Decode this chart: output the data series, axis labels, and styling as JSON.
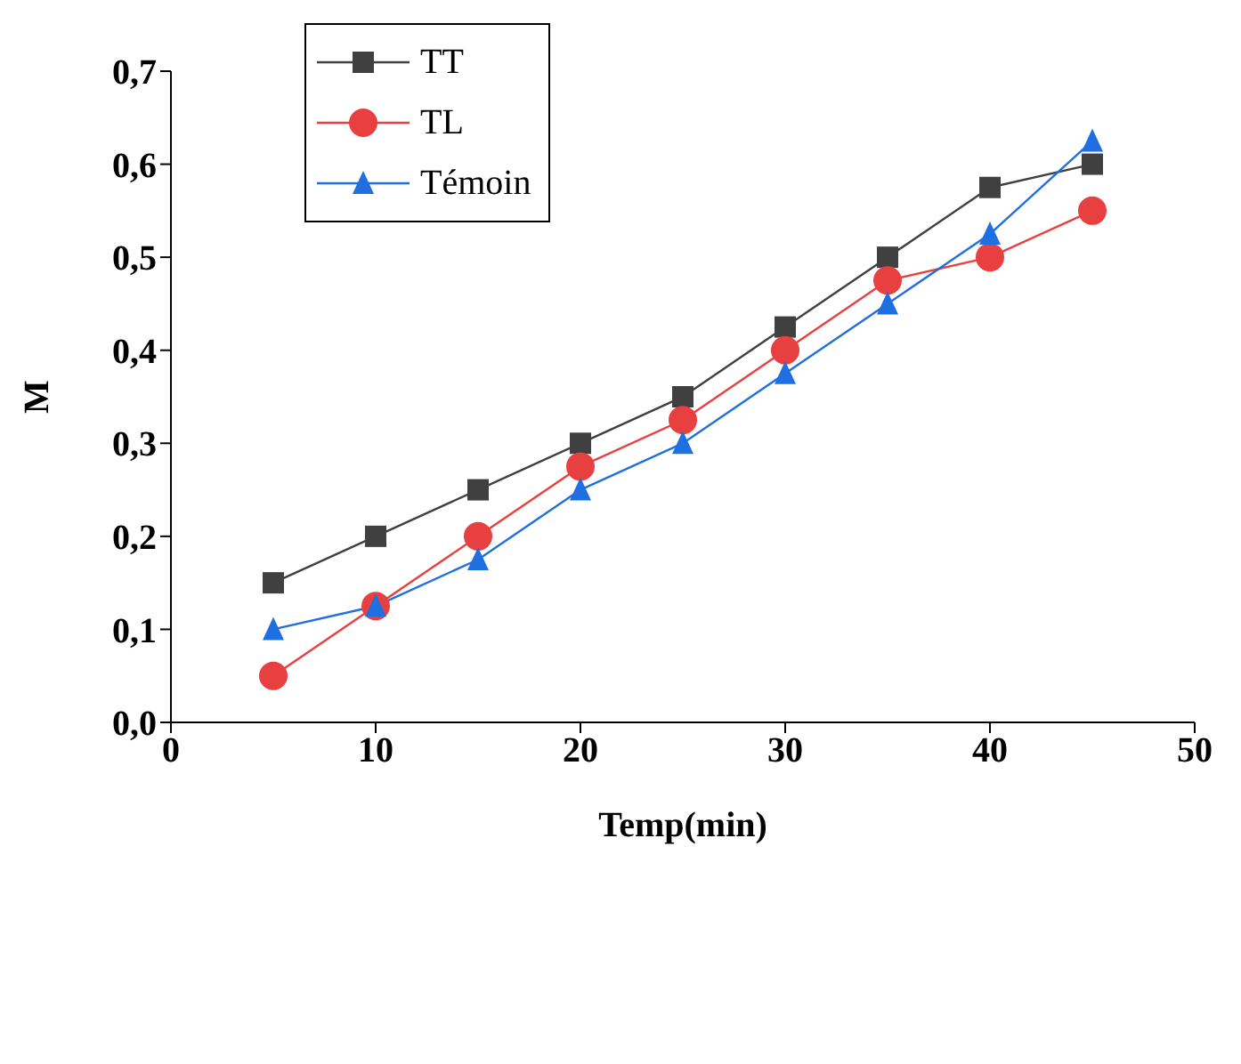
{
  "chart_data": {
    "type": "line",
    "xlabel": "Temp(min)",
    "ylabel": "M",
    "x": [
      5,
      10,
      15,
      20,
      25,
      30,
      35,
      40,
      45
    ],
    "series": [
      {
        "name": "TT",
        "color": "#404040",
        "marker": "square",
        "values": [
          0.15,
          0.2,
          0.25,
          0.3,
          0.35,
          0.425,
          0.5,
          0.575,
          0.6
        ]
      },
      {
        "name": "TL",
        "color": "#e84040",
        "marker": "circle",
        "values": [
          0.05,
          0.125,
          0.2,
          0.275,
          0.325,
          0.4,
          0.475,
          0.5,
          0.55
        ]
      },
      {
        "name": "Témoin",
        "color": "#1f6fe0",
        "marker": "triangle",
        "values": [
          0.1,
          0.125,
          0.175,
          0.25,
          0.3,
          0.375,
          0.45,
          0.525,
          0.625
        ]
      }
    ],
    "xlim": [
      0,
      50
    ],
    "xticks": [
      0,
      10,
      20,
      30,
      40,
      50
    ],
    "ylim": [
      0,
      0.7
    ],
    "yticks": [
      {
        "value": 0,
        "label": "0,0"
      },
      {
        "value": 0.1,
        "label": "0,1"
      },
      {
        "value": 0.2,
        "label": "0,2"
      },
      {
        "value": 0.3,
        "label": "0,3"
      },
      {
        "value": 0.4,
        "label": "0,4"
      },
      {
        "value": 0.5,
        "label": "0,5"
      },
      {
        "value": 0.6,
        "label": "0,6"
      },
      {
        "value": 0.7,
        "label": "0,7"
      }
    ],
    "grid": false,
    "legend": "top left",
    "line_style": "solid"
  }
}
